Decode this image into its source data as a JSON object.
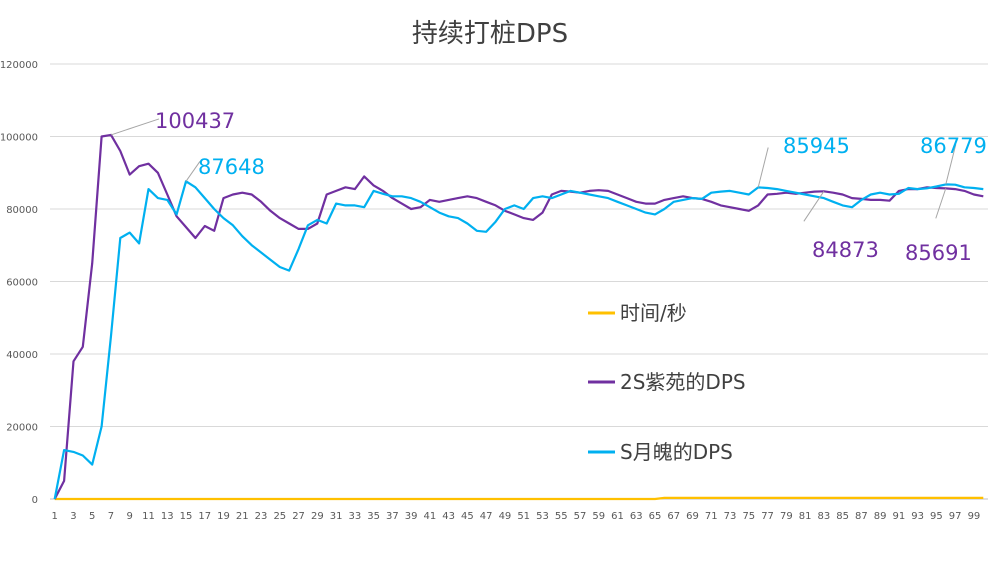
{
  "chart_data": {
    "type": "line",
    "title": "持续打桩DPS",
    "ylim": [
      0,
      120000
    ],
    "yticks": [
      0,
      20000,
      40000,
      60000,
      80000,
      100000,
      120000
    ],
    "xtick_labels": [
      "1",
      "3",
      "5",
      "7",
      "9",
      "11",
      "13",
      "15",
      "17",
      "19",
      "21",
      "23",
      "25",
      "27",
      "29",
      "31",
      "33",
      "35",
      "37",
      "39",
      "41",
      "43",
      "45",
      "47",
      "49",
      "51",
      "53",
      "55",
      "57",
      "59",
      "61",
      "63",
      "65",
      "67",
      "69",
      "71",
      "73",
      "75",
      "77",
      "79",
      "81",
      "83",
      "85",
      "87",
      "89",
      "91",
      "93",
      "95",
      "97",
      "99"
    ],
    "grid": "horizontal",
    "legend_position": "center-right",
    "series": [
      {
        "name": "时间/秒",
        "color": "#FFC000",
        "values": [
          0,
          0,
          0,
          0,
          0,
          0,
          0,
          0,
          0,
          0,
          0,
          0,
          0,
          0,
          0,
          0,
          0,
          0,
          0,
          0,
          0,
          0,
          0,
          0,
          0,
          0,
          0,
          0,
          0,
          0,
          0,
          0,
          0,
          0,
          0,
          0,
          0,
          0,
          0,
          0,
          0,
          0,
          0,
          0,
          0,
          0,
          0,
          0,
          0,
          0,
          0,
          0,
          0,
          0,
          0,
          0,
          0,
          0,
          0,
          0,
          0,
          0,
          0,
          0,
          0,
          300,
          300,
          300,
          300,
          300,
          300,
          300,
          300,
          300,
          300,
          300,
          300,
          300,
          300,
          300,
          300,
          300,
          300,
          300,
          300,
          300,
          300,
          300,
          300,
          300,
          300,
          300,
          300,
          300,
          300,
          300,
          300,
          300,
          300,
          300
        ]
      },
      {
        "name": "2S紫苑的DPS",
        "color": "#7030A0",
        "values": [
          0,
          5000,
          38000,
          42000,
          65000,
          100000,
          100437,
          96000,
          89500,
          91800,
          92500,
          90000,
          84000,
          78000,
          75000,
          72000,
          75300,
          74000,
          83000,
          84000,
          84500,
          84000,
          82000,
          79500,
          77500,
          76000,
          74500,
          74500,
          76000,
          84000,
          85000,
          86000,
          85500,
          89000,
          86500,
          85000,
          83000,
          81500,
          80000,
          80500,
          82500,
          82000,
          82500,
          83000,
          83500,
          83000,
          82000,
          81000,
          79500,
          78500,
          77500,
          77000,
          79000,
          84000,
          85000,
          84800,
          84500,
          85000,
          85200,
          85000,
          84000,
          83000,
          82000,
          81500,
          81500,
          82500,
          83000,
          83500,
          83000,
          82800,
          82000,
          81000,
          80500,
          80000,
          79500,
          81000,
          84000,
          84200,
          84500,
          84200,
          84500,
          84800,
          84873,
          84500,
          84000,
          83000,
          82800,
          82500,
          82500,
          82300,
          85000,
          85500,
          85500,
          86000,
          85800,
          85691,
          85500,
          85000,
          84000,
          83500
        ]
      },
      {
        "name": "S月魄的DPS",
        "color": "#00B0F0",
        "values": [
          0,
          13500,
          13000,
          12000,
          9500,
          20000,
          45000,
          72000,
          73500,
          70500,
          85500,
          83000,
          82500,
          78500,
          87648,
          86000,
          83000,
          80000,
          77500,
          75500,
          72500,
          70000,
          68000,
          66000,
          64000,
          63000,
          69000,
          75500,
          77000,
          76000,
          81500,
          81000,
          81000,
          80500,
          85000,
          84200,
          83500,
          83500,
          83000,
          82000,
          80500,
          79000,
          78000,
          77500,
          76000,
          74000,
          73700,
          76500,
          80000,
          81000,
          80000,
          83000,
          83500,
          83000,
          84000,
          85000,
          84500,
          84000,
          83500,
          83000,
          82000,
          81000,
          80000,
          79000,
          78500,
          80000,
          82000,
          82500,
          83000,
          82800,
          84500,
          84800,
          85000,
          84500,
          84000,
          85945,
          85800,
          85500,
          85000,
          84500,
          84000,
          83500,
          83000,
          82000,
          81000,
          80500,
          82500,
          84000,
          84500,
          84000,
          84200,
          85800,
          85500,
          85700,
          86200,
          86779,
          86700,
          86000,
          85800,
          85500
        ]
      }
    ],
    "annotations": [
      {
        "text": "100437",
        "series": 1,
        "index": 6
      },
      {
        "text": "87648",
        "series": 2,
        "index": 14
      },
      {
        "text": "85945",
        "series": 2,
        "index": 75
      },
      {
        "text": "86779",
        "series": 2,
        "index": 95
      },
      {
        "text": "84873",
        "series": 1,
        "index": 82
      },
      {
        "text": "85691",
        "series": 1,
        "index": 95
      }
    ]
  }
}
